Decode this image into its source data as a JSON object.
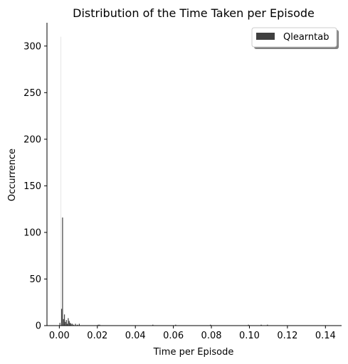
{
  "chart_data": {
    "type": "bar",
    "title": "Distribution of the Time Taken per Episode",
    "xlabel": "Time per Episode",
    "ylabel": "Occurrence",
    "xlim": [
      -0.0065,
      0.1485
    ],
    "ylim": [
      0,
      325
    ],
    "xticks": [
      0.0,
      0.02,
      0.04,
      0.06,
      0.08,
      0.1,
      0.12,
      0.14
    ],
    "xtick_labels": [
      "0.00",
      "0.02",
      "0.04",
      "0.06",
      "0.08",
      "0.10",
      "0.12",
      "0.14"
    ],
    "yticks": [
      0,
      50,
      100,
      150,
      200,
      250,
      300
    ],
    "ytick_labels": [
      "0",
      "50",
      "100",
      "150",
      "200",
      "250",
      "300"
    ],
    "legend_position": "top-right",
    "series": [
      {
        "name": "Qlearntab",
        "color": "#404040",
        "x": [
          0.0003,
          0.0008,
          0.0012,
          0.0017,
          0.0022,
          0.0027,
          0.0032,
          0.0037,
          0.0042,
          0.0047,
          0.0052,
          0.0057,
          0.0062,
          0.0068,
          0.0075,
          0.0085,
          0.0095,
          0.0105,
          0.0205,
          0.0212,
          0.0492,
          0.0612,
          0.0795,
          0.0995,
          0.1062,
          0.1095
        ],
        "values": [
          3,
          310,
          18,
          116,
          7,
          12,
          4,
          6,
          2,
          8,
          5,
          3,
          2,
          2,
          1,
          2,
          1,
          2,
          1,
          1,
          1,
          1,
          1,
          1,
          1,
          1
        ]
      }
    ]
  }
}
